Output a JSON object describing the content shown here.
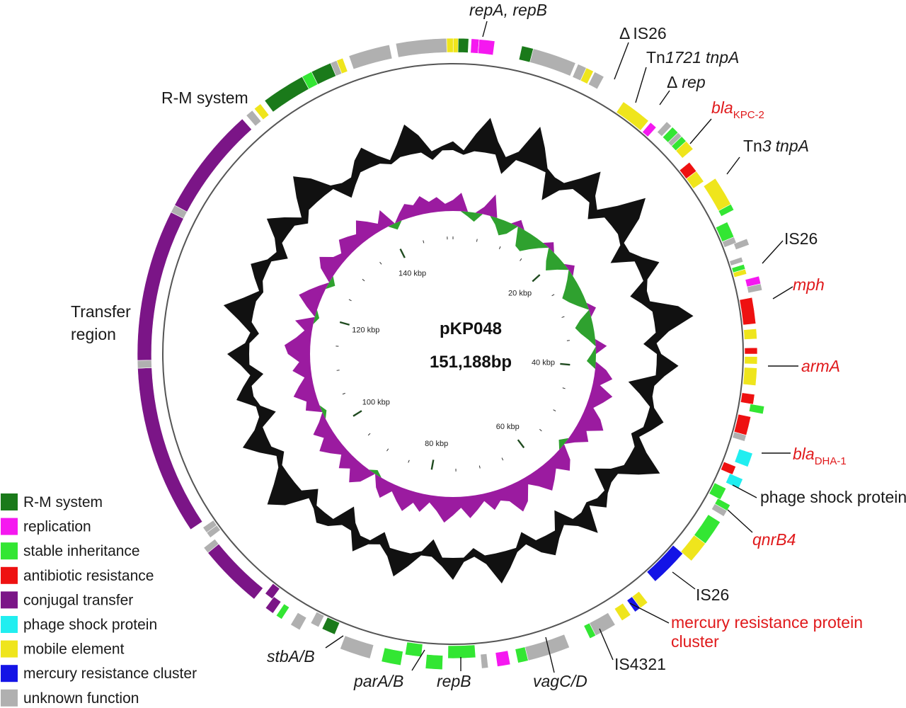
{
  "plasmid": {
    "name": "pKP048",
    "length_label": "151,188bp",
    "total_bp": 151188
  },
  "colors": {
    "rm_system": "#1a7a1a",
    "replication": "#f518f0",
    "stable_inheritance": "#33e633",
    "antibiotic_resistance": "#ee1111",
    "conjugal_transfer": "#7b1587",
    "phage_shock_protein": "#21eef0",
    "mobile_element": "#efe51c",
    "mercury_resistance_cluster": "#1414e6",
    "unknown_function": "#b0b0b0",
    "gc_skew_positive": "#2fa12f",
    "gc_skew_negative": "#9b1ba0",
    "gc_content": "#111111"
  },
  "legend": [
    {
      "key": "rm_system",
      "label": "R-M system"
    },
    {
      "key": "replication",
      "label": "replication"
    },
    {
      "key": "stable_inheritance",
      "label": "stable inheritance"
    },
    {
      "key": "antibiotic_resistance",
      "label": "antibiotic resistance"
    },
    {
      "key": "conjugal_transfer",
      "label": "conjugal transfer"
    },
    {
      "key": "phage_shock_protein",
      "label": "phage shock protein"
    },
    {
      "key": "mobile_element",
      "label": "mobile element"
    },
    {
      "key": "mercury_resistance_cluster",
      "label": "mercury resistance cluster"
    },
    {
      "key": "unknown_function",
      "label": "unknown function"
    }
  ],
  "ticks": [
    {
      "kbp": 20,
      "label": "20 kbp"
    },
    {
      "kbp": 40,
      "label": "40 kbp"
    },
    {
      "kbp": 60,
      "label": "60 kbp"
    },
    {
      "kbp": 80,
      "label": "80 kbp"
    },
    {
      "kbp": 100,
      "label": "100 kbp"
    },
    {
      "kbp": 120,
      "label": "120 kbp"
    },
    {
      "kbp": 140,
      "label": "140 kbp"
    }
  ],
  "gene_labels": {
    "repA_repB": "repA, repB",
    "is26_delta": "IS26",
    "delta_symbol": "Δ",
    "tn1721_prefix": "Tn",
    "tn1721_num": "1721",
    "tn1721_gene": "tnpA",
    "rep_delta": "rep",
    "bla": "bla",
    "kpc2_sub": "KPC-2",
    "tn3_prefix": "Tn",
    "tn3_num": "3",
    "tn3_gene": "tnpA",
    "is26_a": "IS26",
    "mph": "mph",
    "armA": "armA",
    "dha1_sub": "DHA-1",
    "phage_shock": "phage shock protein",
    "qnrB4": "qnrB4",
    "is26_b": "IS26",
    "mercury_line1": "mercury resistance protein",
    "mercury_line2": "cluster",
    "is4321": "IS4321",
    "vagCD": "vagC/D",
    "repB": "repB",
    "parAB": "parA/B",
    "stbAB": "stbA/B",
    "transfer_line1": "Transfer",
    "transfer_line2": "region",
    "rm_system": "R-M system"
  },
  "features": [
    {
      "start": 0.0,
      "end": 0.6,
      "strand": "outer",
      "category": "mobile_element"
    },
    {
      "start": 0.4,
      "end": 1.2,
      "strand": "outer",
      "category": "rm_system"
    },
    {
      "start": 1.4,
      "end": 2.0,
      "strand": "outer",
      "category": "replication"
    },
    {
      "start": 2.0,
      "end": 3.2,
      "strand": "outer",
      "category": "replication"
    },
    {
      "start": 5.3,
      "end": 6.2,
      "strand": "outer",
      "category": "rm_system"
    },
    {
      "start": 6.2,
      "end": 9.6,
      "strand": "outer",
      "category": "unknown_function"
    },
    {
      "start": 9.8,
      "end": 10.5,
      "strand": "outer",
      "category": "unknown_function"
    },
    {
      "start": 10.5,
      "end": 11.1,
      "strand": "outer",
      "category": "mobile_element"
    },
    {
      "start": 11.2,
      "end": 12.0,
      "strand": "outer",
      "category": "unknown_function"
    },
    {
      "start": 14.3,
      "end": 16.8,
      "strand": "inner",
      "category": "mobile_element"
    },
    {
      "start": 17.0,
      "end": 17.6,
      "strand": "inner",
      "category": "replication"
    },
    {
      "start": 17.9,
      "end": 18.4,
      "strand": "outer",
      "category": "unknown_function"
    },
    {
      "start": 18.5,
      "end": 19.1,
      "strand": "outer",
      "category": "stable_inheritance"
    },
    {
      "start": 19.1,
      "end": 19.5,
      "strand": "outer",
      "category": "unknown_function"
    },
    {
      "start": 19.5,
      "end": 20.0,
      "strand": "outer",
      "category": "stable_inheritance"
    },
    {
      "start": 20.0,
      "end": 20.8,
      "strand": "outer",
      "category": "mobile_element"
    },
    {
      "start": 21.4,
      "end": 22.3,
      "strand": "inner",
      "category": "antibiotic_resistance"
    },
    {
      "start": 22.3,
      "end": 23.3,
      "strand": "inner",
      "category": "mobile_element"
    },
    {
      "start": 23.6,
      "end": 25.9,
      "strand": "outer",
      "category": "mobile_element"
    },
    {
      "start": 25.9,
      "end": 26.4,
      "strand": "outer",
      "category": "stable_inheritance"
    },
    {
      "start": 27.0,
      "end": 28.3,
      "strand": "inner",
      "category": "stable_inheritance"
    },
    {
      "start": 28.3,
      "end": 28.8,
      "strand": "inner",
      "category": "unknown_function"
    },
    {
      "start": 28.8,
      "end": 29.3,
      "strand": "outer",
      "category": "unknown_function"
    },
    {
      "start": 30.0,
      "end": 30.4,
      "strand": "inner",
      "category": "unknown_function"
    },
    {
      "start": 30.6,
      "end": 31.0,
      "strand": "inner",
      "category": "stable_inheritance"
    },
    {
      "start": 31.0,
      "end": 31.4,
      "strand": "inner",
      "category": "mobile_element"
    },
    {
      "start": 31.8,
      "end": 32.4,
      "strand": "outer",
      "category": "replication"
    },
    {
      "start": 32.4,
      "end": 32.9,
      "strand": "outer",
      "category": "unknown_function"
    },
    {
      "start": 33.3,
      "end": 35.4,
      "strand": "inner",
      "category": "antibiotic_resistance"
    },
    {
      "start": 35.8,
      "end": 36.6,
      "strand": "inner",
      "category": "mobile_element"
    },
    {
      "start": 37.3,
      "end": 37.8,
      "strand": "inner",
      "category": "antibiotic_resistance"
    },
    {
      "start": 38.0,
      "end": 38.6,
      "strand": "inner",
      "category": "mobile_element"
    },
    {
      "start": 38.9,
      "end": 40.3,
      "strand": "inner",
      "category": "mobile_element"
    },
    {
      "start": 41.0,
      "end": 41.8,
      "strand": "inner",
      "category": "antibiotic_resistance"
    },
    {
      "start": 41.8,
      "end": 42.4,
      "strand": "outer",
      "category": "stable_inheritance"
    },
    {
      "start": 42.8,
      "end": 44.3,
      "strand": "inner",
      "category": "antibiotic_resistance"
    },
    {
      "start": 44.3,
      "end": 44.8,
      "strand": "inner",
      "category": "unknown_function"
    },
    {
      "start": 45.5,
      "end": 46.6,
      "strand": "outer",
      "category": "phage_shock_protein"
    },
    {
      "start": 46.9,
      "end": 47.6,
      "strand": "inner",
      "category": "antibiotic_resistance"
    },
    {
      "start": 47.6,
      "end": 48.4,
      "strand": "outer",
      "category": "phage_shock_protein"
    },
    {
      "start": 48.8,
      "end": 49.8,
      "strand": "inner",
      "category": "stable_inheritance"
    },
    {
      "start": 49.8,
      "end": 50.3,
      "strand": "outer",
      "category": "stable_inheritance"
    },
    {
      "start": 50.3,
      "end": 50.8,
      "strand": "outer",
      "category": "unknown_function"
    },
    {
      "start": 51.3,
      "end": 53.3,
      "strand": "outer",
      "category": "stable_inheritance"
    },
    {
      "start": 53.3,
      "end": 55.0,
      "strand": "outer",
      "category": "mobile_element"
    },
    {
      "start": 55.0,
      "end": 58.1,
      "strand": "inner",
      "category": "mercury_resistance_cluster"
    },
    {
      "start": 59.6,
      "end": 60.3,
      "strand": "outer",
      "category": "mobile_element"
    },
    {
      "start": 60.3,
      "end": 60.8,
      "strand": "outer",
      "category": "mercury_resistance_cluster"
    },
    {
      "start": 61.2,
      "end": 62.0,
      "strand": "outer",
      "category": "mobile_element"
    },
    {
      "start": 62.6,
      "end": 64.3,
      "strand": "outer",
      "category": "unknown_function"
    },
    {
      "start": 64.3,
      "end": 64.8,
      "strand": "outer",
      "category": "stable_inheritance"
    },
    {
      "start": 66.5,
      "end": 69.8,
      "strand": "outer",
      "category": "unknown_function"
    },
    {
      "start": 69.8,
      "end": 70.6,
      "strand": "outer",
      "category": "stable_inheritance"
    },
    {
      "start": 71.2,
      "end": 72.2,
      "strand": "outer",
      "category": "replication"
    },
    {
      "start": 72.9,
      "end": 73.4,
      "strand": "outer",
      "category": "unknown_function"
    },
    {
      "start": 73.8,
      "end": 76.0,
      "strand": "inner",
      "category": "stable_inheritance"
    },
    {
      "start": 76.4,
      "end": 77.7,
      "strand": "outer",
      "category": "stable_inheritance"
    },
    {
      "start": 78.1,
      "end": 79.4,
      "strand": "inner",
      "category": "stable_inheritance"
    },
    {
      "start": 79.6,
      "end": 81.1,
      "strand": "outer",
      "category": "stable_inheritance"
    },
    {
      "start": 82.0,
      "end": 84.4,
      "strand": "outer",
      "category": "unknown_function"
    },
    {
      "start": 85.2,
      "end": 86.3,
      "strand": "inner",
      "category": "rm_system"
    },
    {
      "start": 86.6,
      "end": 87.3,
      "strand": "inner",
      "category": "unknown_function"
    },
    {
      "start": 87.8,
      "end": 88.6,
      "strand": "outer",
      "category": "unknown_function"
    },
    {
      "start": 89.4,
      "end": 89.9,
      "strand": "outer",
      "category": "stable_inheritance"
    },
    {
      "start": 90.2,
      "end": 90.9,
      "strand": "outer",
      "category": "conjugal_transfer"
    },
    {
      "start": 90.9,
      "end": 91.6,
      "strand": "inner",
      "category": "conjugal_transfer"
    },
    {
      "start": 92.0,
      "end": 97.0,
      "strand": "outer",
      "category": "conjugal_transfer"
    },
    {
      "start": 97.0,
      "end": 97.5,
      "strand": "outer",
      "category": "unknown_function"
    },
    {
      "start": 97.8,
      "end": 98.3,
      "strand": "inner",
      "category": "unknown_function"
    },
    {
      "start": 98.3,
      "end": 98.8,
      "strand": "inner",
      "category": "unknown_function"
    },
    {
      "start": 99.2,
      "end": 112.3,
      "strand": "outer",
      "category": "conjugal_transfer"
    },
    {
      "start": 112.3,
      "end": 112.9,
      "strand": "outer",
      "category": "unknown_function"
    },
    {
      "start": 112.9,
      "end": 124.6,
      "strand": "outer",
      "category": "conjugal_transfer"
    },
    {
      "start": 124.6,
      "end": 125.2,
      "strand": "outer",
      "category": "unknown_function"
    },
    {
      "start": 125.2,
      "end": 133.6,
      "strand": "outer",
      "category": "conjugal_transfer"
    },
    {
      "start": 134.0,
      "end": 134.6,
      "strand": "outer",
      "category": "unknown_function"
    },
    {
      "start": 134.8,
      "end": 135.4,
      "strand": "outer",
      "category": "mobile_element"
    },
    {
      "start": 135.8,
      "end": 139.2,
      "strand": "outer",
      "category": "rm_system"
    },
    {
      "start": 139.2,
      "end": 140.0,
      "strand": "outer",
      "category": "stable_inheritance"
    },
    {
      "start": 140.0,
      "end": 141.6,
      "strand": "outer",
      "category": "rm_system"
    },
    {
      "start": 141.6,
      "end": 142.1,
      "strand": "outer",
      "category": "unknown_function"
    },
    {
      "start": 142.1,
      "end": 142.6,
      "strand": "outer",
      "category": "mobile_element"
    },
    {
      "start": 143.1,
      "end": 146.3,
      "strand": "outer",
      "category": "unknown_function"
    },
    {
      "start": 146.8,
      "end": 150.7,
      "strand": "outer",
      "category": "unknown_function"
    },
    {
      "start": 150.7,
      "end": 151.2,
      "strand": "outer",
      "category": "mobile_element"
    }
  ],
  "gc_content_profile": [
    0.2,
    -0.1,
    0.4,
    0.8,
    0.3,
    -0.4,
    0.2,
    0.9,
    0.5,
    0.1,
    -0.6,
    -0.2,
    0.3,
    0.7,
    0.2,
    -0.3,
    0.4,
    1.0,
    0.6,
    -0.1,
    -0.5,
    0.2,
    0.5,
    0.1,
    -0.4,
    -0.2,
    0.6,
    0.9,
    0.3,
    -0.3,
    0.1,
    0.5,
    0.2,
    -0.6,
    -0.3,
    0.1,
    0.4,
    0.2,
    -0.2,
    0.3,
    0.8,
    0.4,
    -0.2,
    -0.5,
    0.1,
    0.3,
    -0.1,
    0.6,
    0.2,
    -0.4,
    0.2,
    0.5,
    0.3,
    -0.3,
    0.1,
    0.4,
    0.7,
    0.2,
    -0.2,
    0.1,
    0.5,
    0.2,
    -0.4,
    -0.1,
    0.3,
    0.6,
    0.2,
    -0.3,
    0.1,
    0.4,
    -0.2,
    -0.5,
    0.2,
    0.3,
    0.1,
    -0.3,
    0.5,
    0.8,
    0.4,
    0.1,
    -0.2,
    0.3,
    0.6,
    0.2,
    -0.4,
    -0.1,
    0.4,
    0.2,
    -0.3,
    0.2,
    0.5,
    0.1,
    -0.2,
    0.3,
    0.7,
    0.3,
    -0.1,
    0.2,
    0.4,
    0.1,
    -0.3,
    0.2,
    0.6,
    0.3,
    -0.2,
    0.4,
    0.8,
    0.5,
    0.1,
    -0.4,
    -0.2,
    0.3,
    0.5,
    0.2,
    -0.1,
    0.3,
    0.7,
    0.4,
    -0.2,
    0.1
  ],
  "gc_skew_profile": [
    0.3,
    0.5,
    -0.2,
    -0.4,
    0.2,
    0.6,
    -0.3,
    -0.7,
    -0.5,
    0.2,
    -0.8,
    -0.9,
    -0.6,
    -0.3,
    0.2,
    -0.5,
    -0.8,
    -0.4,
    0.2,
    -0.3,
    -0.6,
    -0.9,
    -0.7,
    -0.4,
    0.2,
    -0.5,
    -0.8,
    -0.6,
    -0.3,
    0.3,
    -0.2,
    -0.4,
    0.3,
    0.5,
    0.2,
    0.6,
    0.4,
    0.2,
    0.5,
    0.7,
    0.3,
    0.5,
    0.2,
    -0.3,
    0.4,
    0.6,
    0.3,
    0.5,
    0.7,
    0.4,
    0.2,
    0.6,
    0.8,
    0.4,
    0.3,
    0.5,
    0.2,
    0.4,
    0.6,
    0.3,
    0.5,
    0.7,
    0.4,
    0.2,
    0.5,
    0.3,
    0.6,
    0.4,
    0.2,
    0.5,
    0.3,
    -0.2,
    0.4,
    0.6,
    0.3,
    0.5,
    0.2,
    0.4,
    0.6,
    0.3,
    0.5,
    0.2,
    -0.2,
    0.4,
    0.3,
    0.6,
    0.4,
    0.2,
    0.5,
    0.3,
    0.6,
    0.7,
    0.4,
    0.2,
    0.5,
    -0.2,
    0.3,
    0.6,
    0.4,
    0.2,
    -0.3,
    0.4,
    0.6,
    0.3,
    0.2,
    0.5,
    0.4,
    0.3,
    0.6,
    0.4,
    0.2,
    0.5,
    -0.3,
    0.2,
    0.4,
    0.3,
    0.5,
    0.3,
    0.4,
    0.2
  ]
}
